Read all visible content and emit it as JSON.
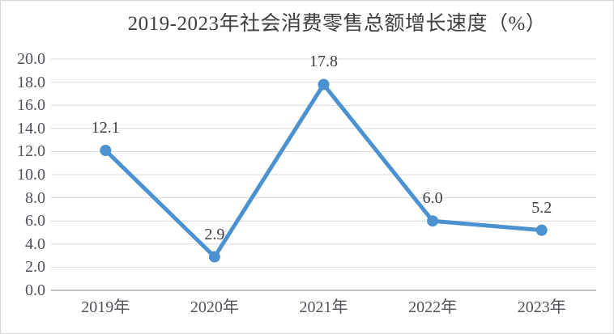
{
  "chart_data": {
    "type": "line",
    "title": "2019-2023年社会消费零售总额增长速度（%）",
    "categories": [
      "2019年",
      "2020年",
      "2021年",
      "2022年",
      "2023年"
    ],
    "values": [
      12.1,
      2.9,
      17.8,
      6.0,
      5.2
    ],
    "data_labels": [
      "12.1",
      "2.9",
      "17.8",
      "6.0",
      "5.2"
    ],
    "ylim": [
      0,
      20
    ],
    "ytick_step": 2,
    "ytick_labels": [
      "0.0",
      "2.0",
      "4.0",
      "6.0",
      "8.0",
      "10.0",
      "12.0",
      "14.0",
      "16.0",
      "18.0",
      "20.0"
    ],
    "xlabel": "",
    "ylabel": "",
    "grid": "horizontal",
    "legend": "none",
    "colors": {
      "line": "#4d92d0",
      "marker": "#4d92d0",
      "gridline": "#d9d9d9",
      "axis_line": "#aeaeae",
      "title_text": "#3f3f3f",
      "tick_text": "#51515a",
      "data_label_text": "#3f3f3f"
    }
  }
}
